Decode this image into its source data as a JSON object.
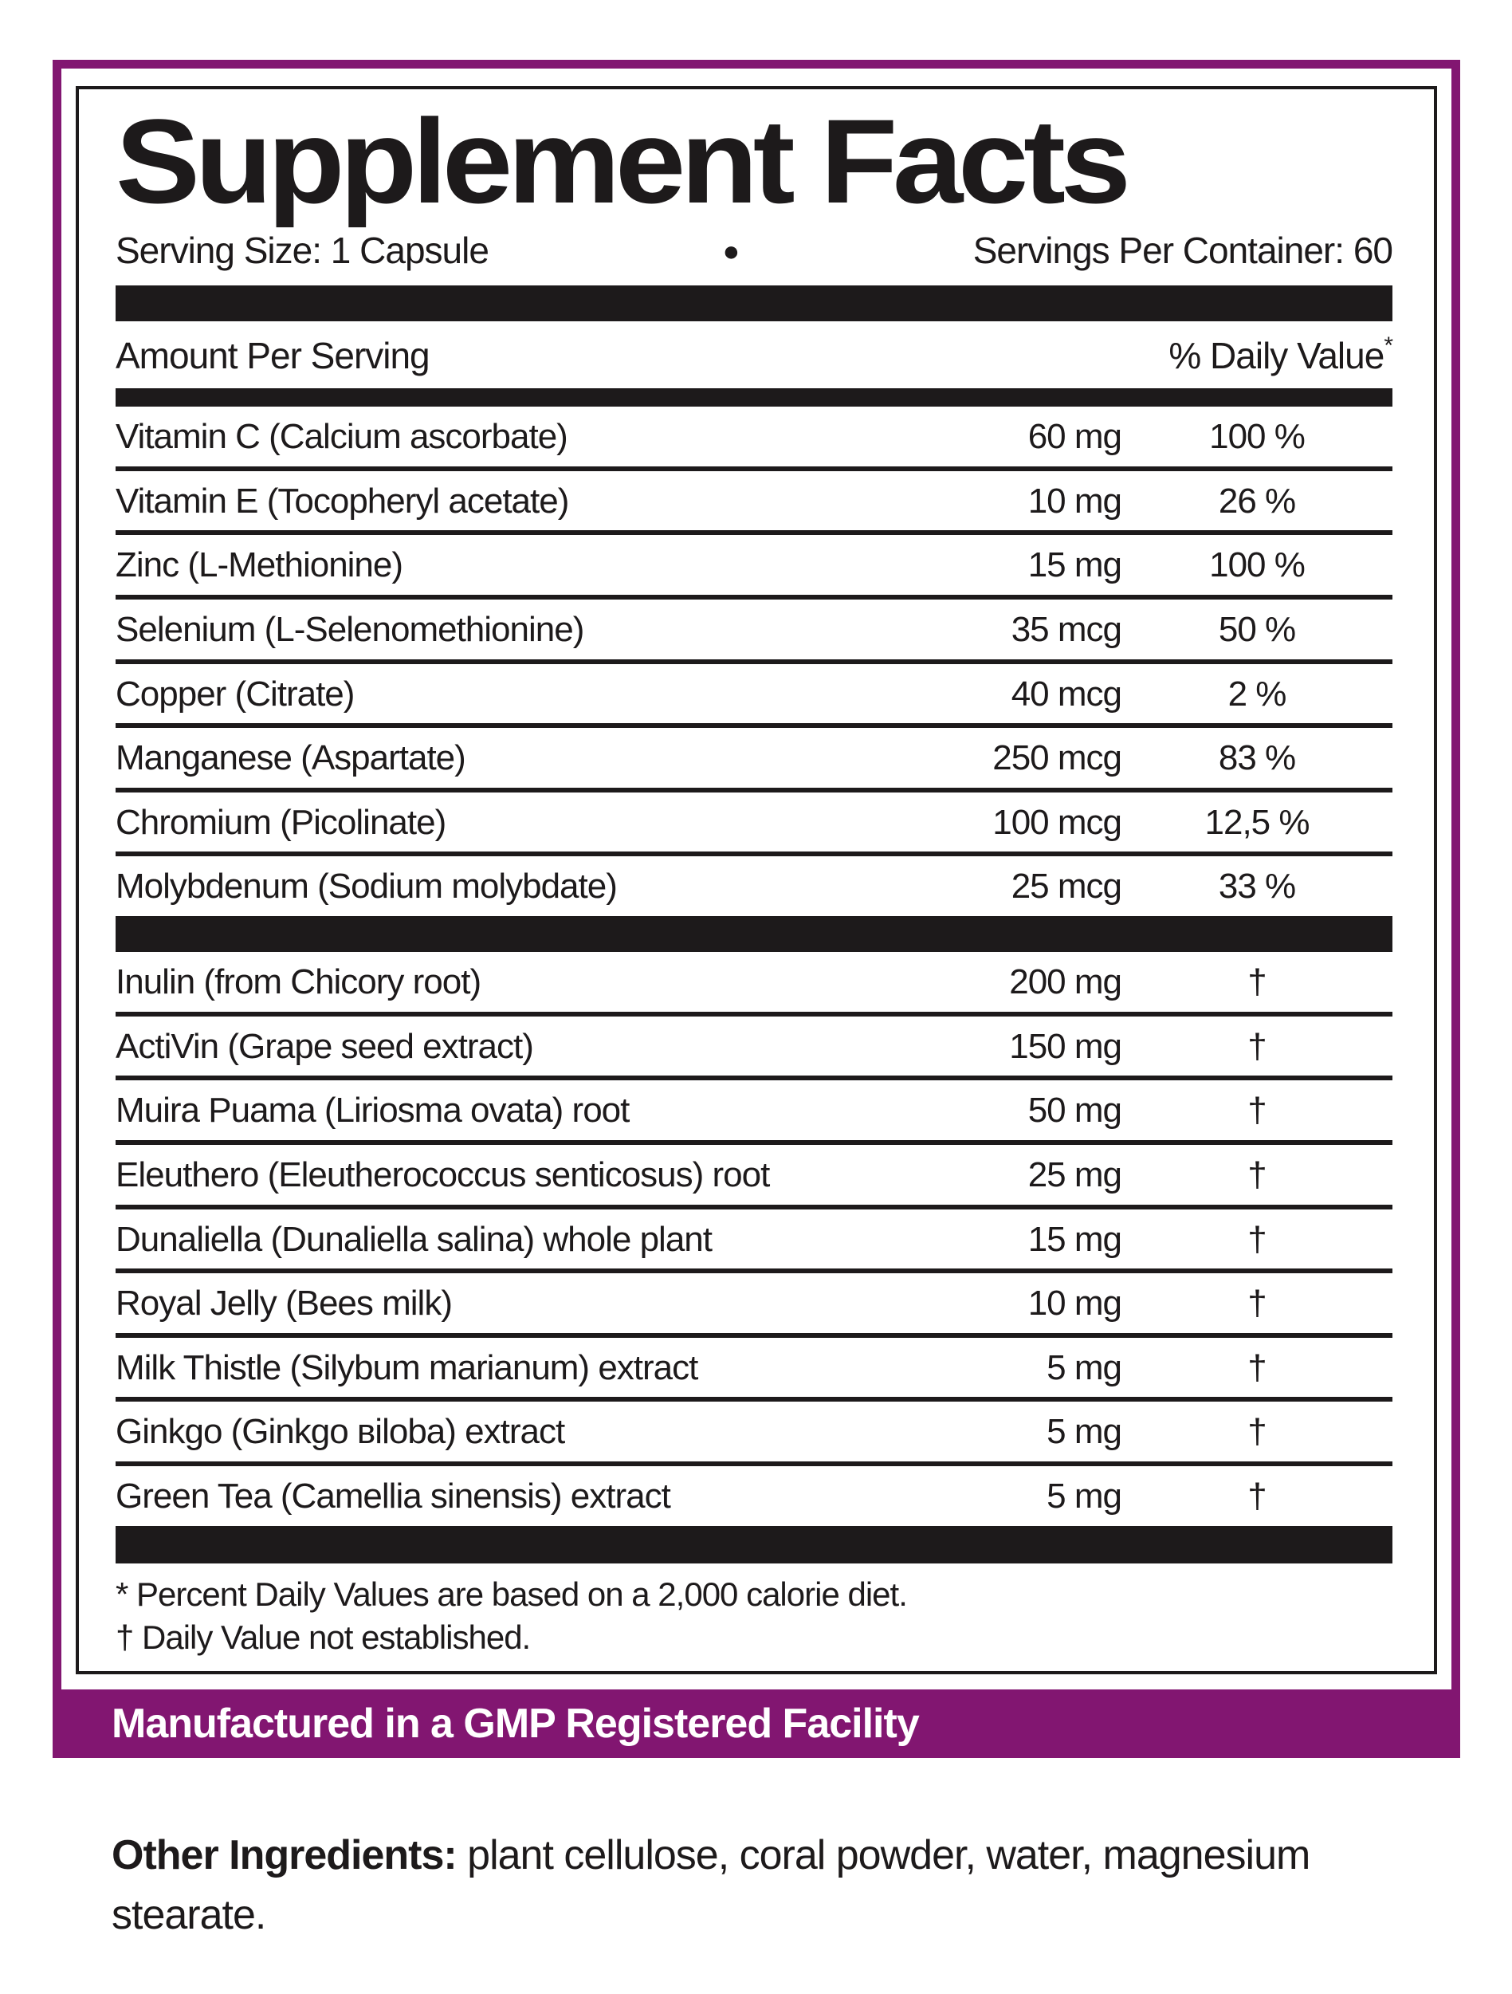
{
  "colors": {
    "purple": "#821671",
    "black": "#1D1A1B"
  },
  "label": {
    "title": "Supplement Facts",
    "serving_size": "Serving Size: 1 Capsule",
    "bullet": "●",
    "servings_per_container": "Servings Per Container: 60",
    "amount_header": "Amount Per Serving",
    "dv_header": "% Daily Value",
    "dv_header_footnote_mark": "*",
    "minerals": [
      {
        "name": "Vitamin C (Calcium ascorbate)",
        "amount": "60 mg",
        "dv": "100 %"
      },
      {
        "name": "Vitamin E (Tocopheryl acetate)",
        "amount": "10 mg",
        "dv": "26 %"
      },
      {
        "name": "Zinc (L-Methionine)",
        "amount": "15 mg",
        "dv": "100 %"
      },
      {
        "name": "Selenium (L-Selenomethionine)",
        "amount": "35 mcg",
        "dv": "50 %"
      },
      {
        "name": "Copper (Citrate)",
        "amount": "40 mcg",
        "dv": "2 %"
      },
      {
        "name": "Manganese (Aspartate)",
        "amount": "250 mcg",
        "dv": "83 %"
      },
      {
        "name": "Chromium (Picolinate)",
        "amount": "100 mcg",
        "dv": "12,5 %"
      },
      {
        "name": "Molybdenum (Sodium molybdate)",
        "amount": "25 mcg",
        "dv": "33 %"
      }
    ],
    "botanicals": [
      {
        "name": "Inulin (from Chicory root)",
        "amount": "200 mg",
        "dv": "†"
      },
      {
        "name": "ActiVin (Grape seed extract)",
        "amount": "150 mg",
        "dv": "†"
      },
      {
        "name": "Muira Puama (Liriosma ovata) root",
        "amount": "50 mg",
        "dv": "†"
      },
      {
        "name": "Eleuthero (Eleutherococcus senticosus) root",
        "amount": "25 mg",
        "dv": "†"
      },
      {
        "name": "Dunaliella (Dunaliella salina) whole plant",
        "amount": "15 mg",
        "dv": "†"
      },
      {
        "name": "Royal Jelly (Bees milk) ",
        "amount": "10 mg",
        "dv": "†"
      },
      {
        "name": "Milk Thistle (Silybum marianum) extract",
        "amount": "5 mg",
        "dv": "†"
      },
      {
        "name": "Ginkgo (Ginkgo ʙiloba) extract",
        "amount": "5 mg",
        "dv": "†"
      },
      {
        "name": "Green Tea (Camellia sinensis) extract",
        "amount": "5 mg",
        "dv": "†"
      }
    ],
    "footnote_dv": "* Percent Daily Values are based on a 2,000 calorie diet.",
    "footnote_dagger": "† Daily Value not established.",
    "banner": "Manufactured in a GMP Registered Facility",
    "other_ingredients": {
      "lead": "Other Ingredients:",
      "text": " plant cellulose, coral powder, water, magnesium stearate."
    }
  }
}
